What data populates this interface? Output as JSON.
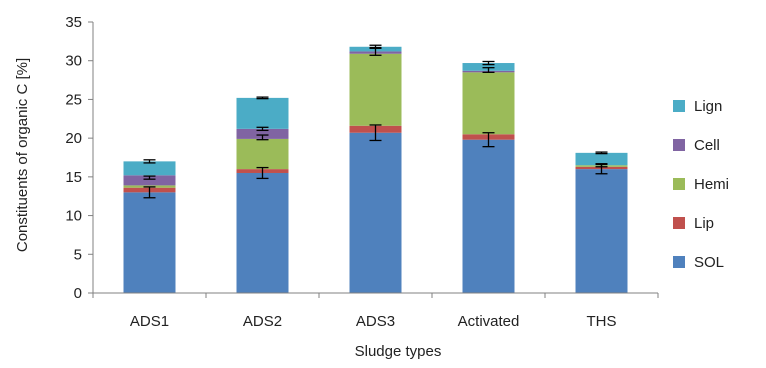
{
  "chart_data": {
    "type": "bar",
    "stacked": true,
    "xlabel": "Sludge types",
    "ylabel": "Constituents of organic C [%]",
    "ylim": [
      0,
      35
    ],
    "yticks": [
      0,
      5,
      10,
      15,
      20,
      25,
      30,
      35
    ],
    "grid": false,
    "legend_position": "right",
    "categories": [
      "ADS1",
      "ADS2",
      "ADS3",
      "Activated",
      "THS"
    ],
    "series": [
      {
        "name": "SOL",
        "color": "#4f81bd",
        "values": [
          13.0,
          15.5,
          20.7,
          19.8,
          16.0
        ],
        "errors": [
          0.7,
          0.7,
          1.0,
          0.9,
          0.6
        ]
      },
      {
        "name": "Lip",
        "color": "#c0504d",
        "values": [
          0.6,
          0.5,
          0.9,
          0.7,
          0.3
        ],
        "errors": null
      },
      {
        "name": "Hemi",
        "color": "#9bbb59",
        "values": [
          0.3,
          3.9,
          9.3,
          8.0,
          0.2
        ],
        "errors": null
      },
      {
        "name": "Cell",
        "color": "#8064a2",
        "values": [
          1.3,
          1.3,
          0.3,
          0.2,
          0.0
        ],
        "errors": null
      },
      {
        "name": "Lign",
        "color": "#4bacc6",
        "values": [
          1.8,
          4.0,
          0.6,
          1.0,
          1.6
        ],
        "errors": [
          0.2,
          0.1,
          0.2,
          0.2,
          0.1
        ]
      }
    ],
    "extra_error_markers": [
      {
        "category": "ADS1",
        "value": 14.9,
        "error": 0.2
      },
      {
        "category": "ADS2",
        "value": 20.1,
        "error": 0.3
      },
      {
        "category": "ADS2",
        "value": 21.2,
        "error": 0.2
      },
      {
        "category": "ADS3",
        "value": 31.2,
        "error": 0.5
      },
      {
        "category": "Activated",
        "value": 28.8,
        "error": 0.3
      },
      {
        "category": "THS",
        "value": 16.5,
        "error": 0.2
      }
    ]
  }
}
